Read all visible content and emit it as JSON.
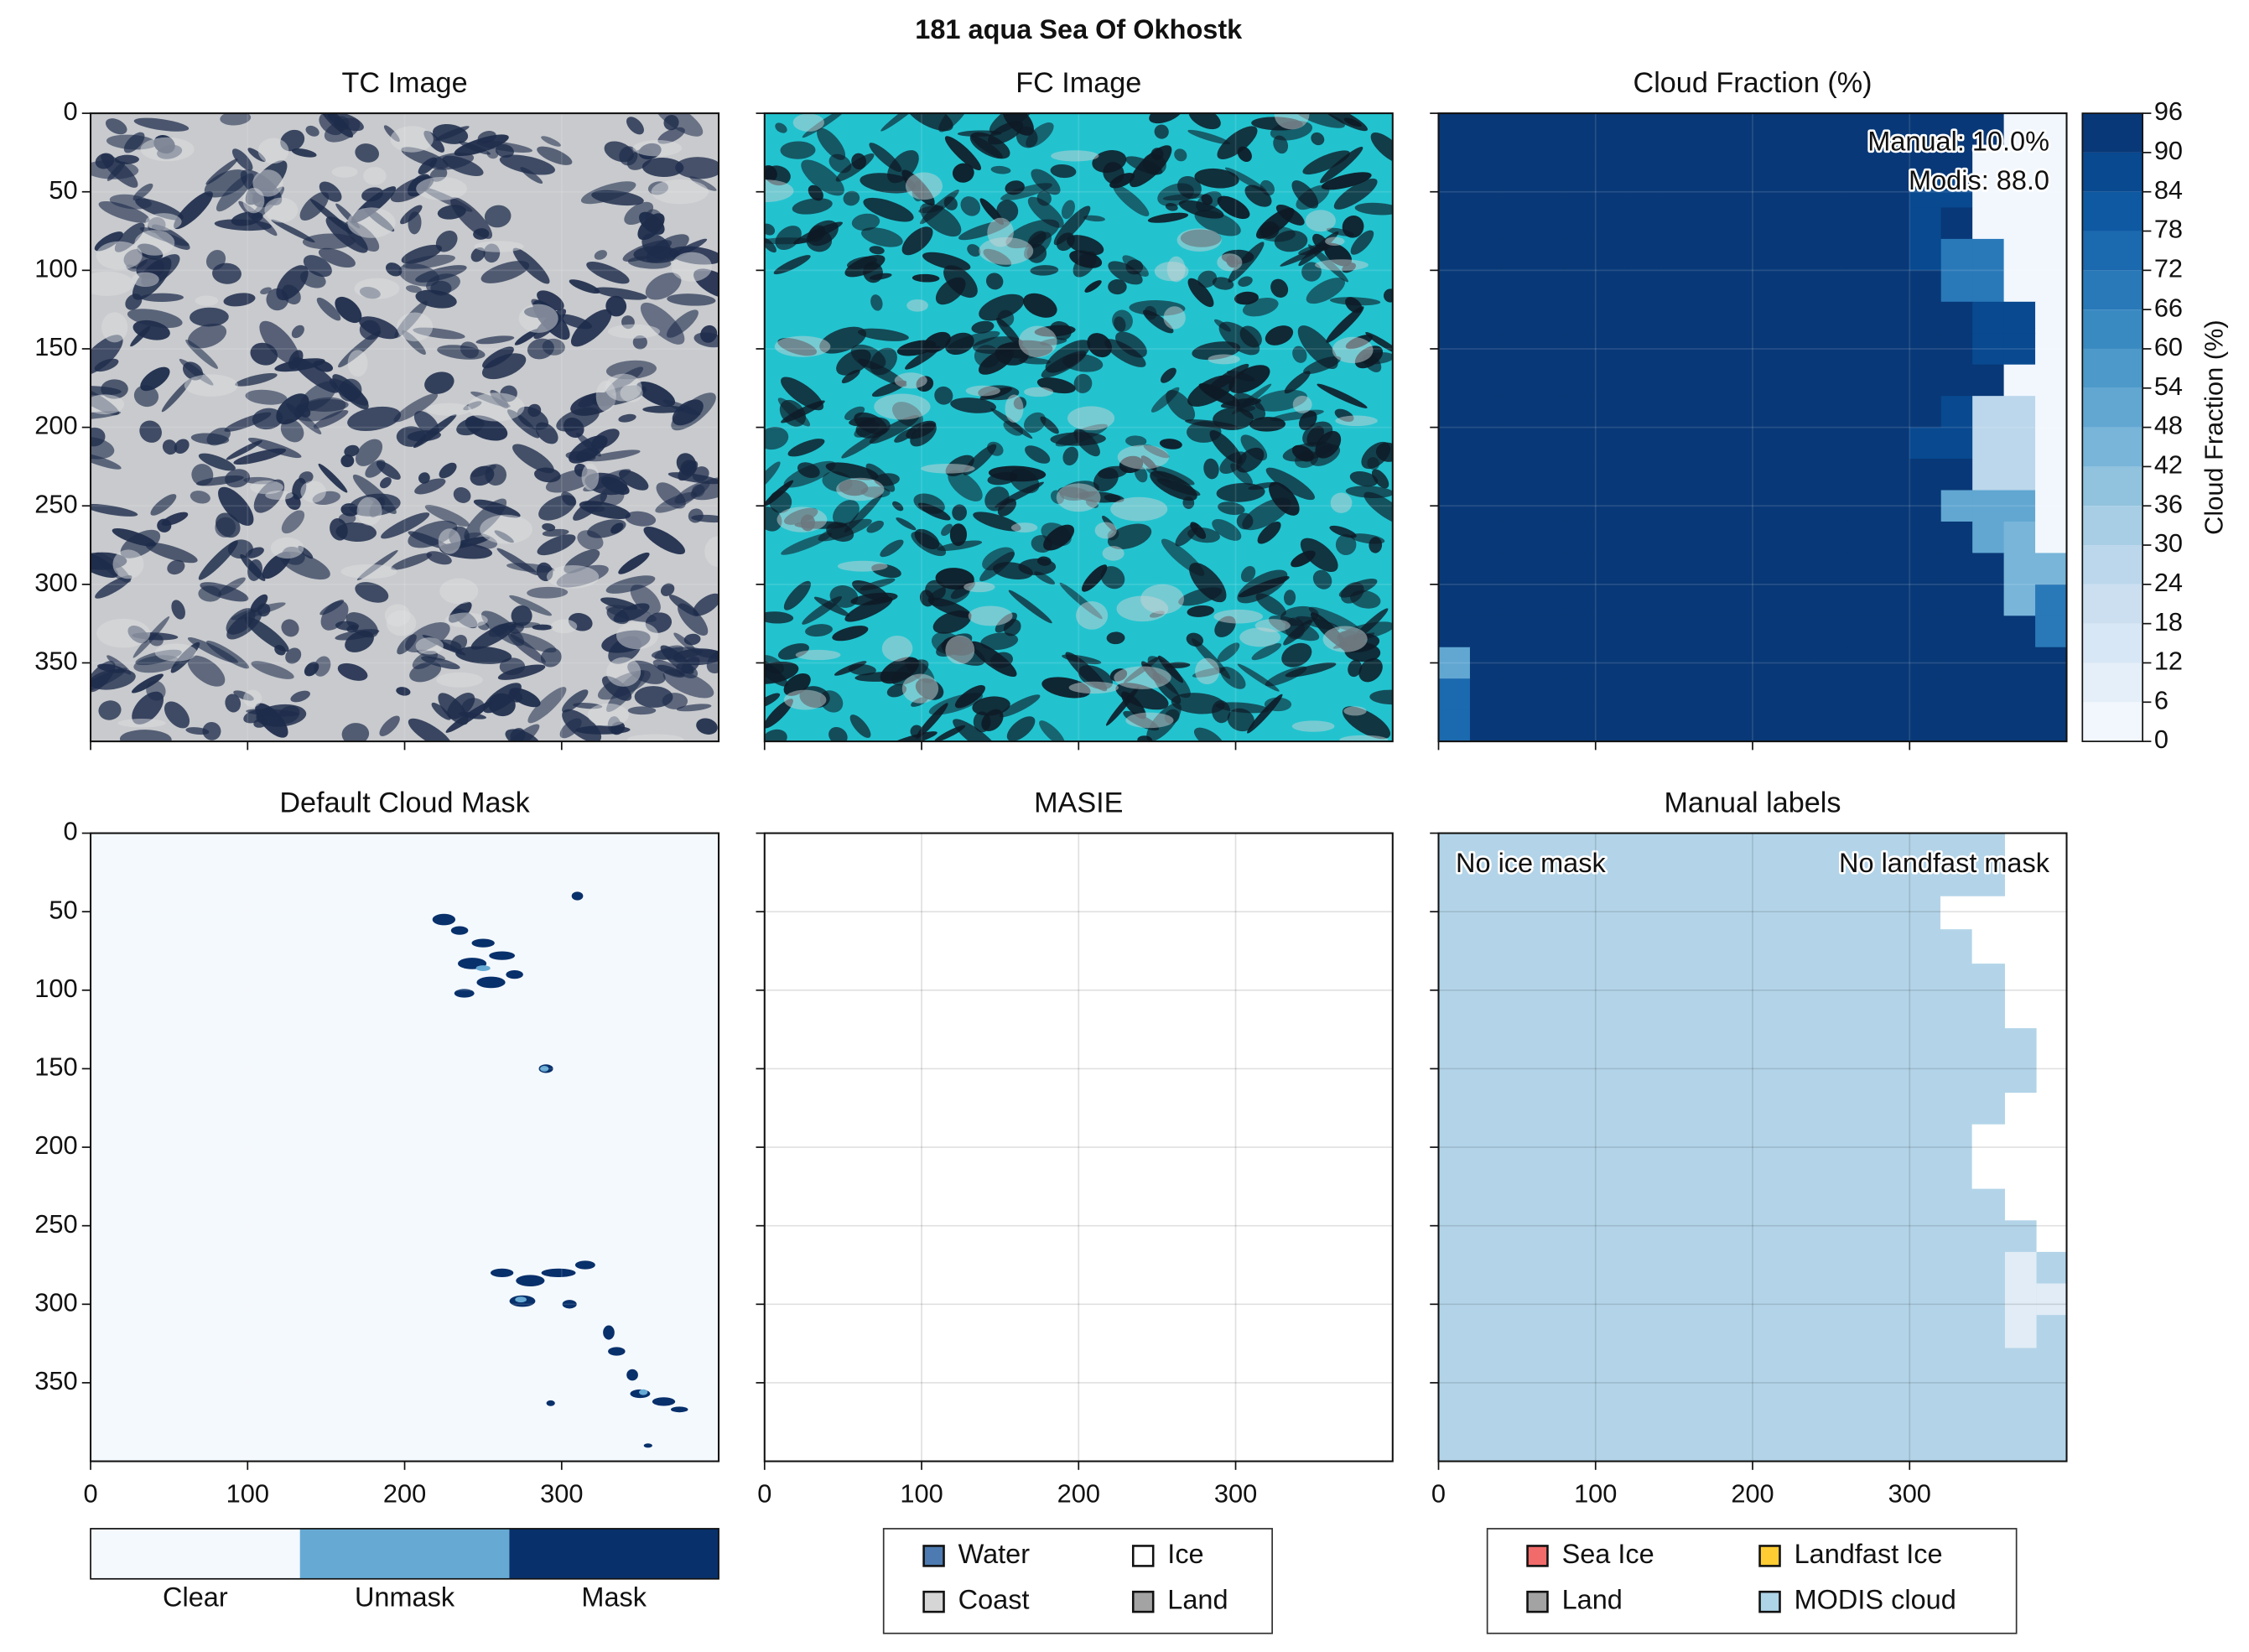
{
  "chart_data": {
    "type": "image-grid",
    "title": "181 aqua Sea Of Okhostk",
    "xlim": [
      0,
      400
    ],
    "ylim": [
      400,
      0
    ],
    "xticks": [
      0,
      100,
      200,
      300
    ],
    "yticks": [
      0,
      50,
      100,
      150,
      200,
      250,
      300,
      350
    ],
    "grid": true,
    "panels": [
      {
        "type": "image",
        "title": "TC Image",
        "style": "true-color"
      },
      {
        "type": "image",
        "title": "FC Image",
        "style": "false-color"
      },
      {
        "type": "heatmap",
        "title": "Cloud Fraction (%)",
        "annotations": [
          "Manual: 10.0%",
          "Modis: 88.0"
        ],
        "z": [
          [
            96,
            96,
            96,
            96,
            96,
            96,
            96,
            96,
            96,
            96,
            96,
            96,
            96,
            96,
            96,
            96,
            96,
            96,
            0,
            0
          ],
          [
            96,
            96,
            96,
            96,
            96,
            96,
            96,
            96,
            96,
            96,
            96,
            96,
            96,
            96,
            96,
            96,
            96,
            0,
            0,
            0
          ],
          [
            96,
            96,
            96,
            96,
            96,
            96,
            96,
            96,
            96,
            96,
            96,
            96,
            96,
            96,
            96,
            84,
            84,
            0,
            0,
            0
          ],
          [
            96,
            96,
            96,
            96,
            96,
            96,
            96,
            96,
            96,
            96,
            96,
            96,
            96,
            96,
            96,
            84,
            96,
            0,
            0,
            0
          ],
          [
            96,
            96,
            96,
            96,
            96,
            96,
            96,
            96,
            96,
            96,
            96,
            96,
            96,
            96,
            96,
            84,
            66,
            66,
            0,
            0
          ],
          [
            96,
            96,
            96,
            96,
            96,
            96,
            96,
            96,
            96,
            96,
            96,
            96,
            96,
            96,
            96,
            96,
            66,
            66,
            0,
            0
          ],
          [
            96,
            96,
            96,
            96,
            96,
            96,
            96,
            96,
            96,
            96,
            96,
            96,
            96,
            96,
            96,
            96,
            96,
            84,
            84,
            0
          ],
          [
            96,
            96,
            96,
            96,
            96,
            96,
            96,
            96,
            96,
            96,
            96,
            96,
            96,
            96,
            96,
            96,
            96,
            84,
            84,
            0
          ],
          [
            96,
            96,
            96,
            96,
            96,
            96,
            96,
            96,
            96,
            96,
            96,
            96,
            96,
            96,
            96,
            96,
            96,
            96,
            0,
            0
          ],
          [
            96,
            96,
            96,
            96,
            96,
            96,
            96,
            96,
            96,
            96,
            96,
            96,
            96,
            96,
            96,
            96,
            84,
            24,
            24,
            0
          ],
          [
            96,
            96,
            96,
            96,
            96,
            96,
            96,
            96,
            96,
            96,
            96,
            96,
            96,
            96,
            96,
            84,
            84,
            24,
            24,
            0
          ],
          [
            96,
            96,
            96,
            96,
            96,
            96,
            96,
            96,
            96,
            96,
            96,
            96,
            96,
            96,
            96,
            96,
            96,
            24,
            24,
            0
          ],
          [
            96,
            96,
            96,
            96,
            96,
            96,
            96,
            96,
            96,
            96,
            96,
            96,
            96,
            96,
            96,
            96,
            48,
            48,
            48,
            0
          ],
          [
            96,
            96,
            96,
            96,
            96,
            96,
            96,
            96,
            96,
            96,
            96,
            96,
            96,
            96,
            96,
            96,
            96,
            48,
            42,
            0
          ],
          [
            96,
            96,
            96,
            96,
            96,
            96,
            96,
            96,
            96,
            96,
            96,
            96,
            96,
            96,
            96,
            96,
            96,
            96,
            42,
            42
          ],
          [
            96,
            96,
            96,
            96,
            96,
            96,
            96,
            96,
            96,
            96,
            96,
            96,
            96,
            96,
            96,
            96,
            96,
            96,
            42,
            66
          ],
          [
            96,
            96,
            96,
            96,
            96,
            96,
            96,
            96,
            96,
            96,
            96,
            96,
            96,
            96,
            96,
            96,
            96,
            96,
            96,
            66
          ],
          [
            48,
            96,
            96,
            96,
            96,
            96,
            96,
            96,
            96,
            96,
            96,
            96,
            96,
            96,
            96,
            96,
            96,
            96,
            96,
            96
          ],
          [
            72,
            96,
            96,
            96,
            96,
            96,
            96,
            96,
            96,
            96,
            96,
            96,
            96,
            96,
            96,
            96,
            96,
            96,
            96,
            96
          ],
          [
            72,
            96,
            96,
            96,
            96,
            96,
            96,
            96,
            96,
            96,
            96,
            96,
            96,
            96,
            96,
            96,
            96,
            96,
            96,
            96
          ]
        ],
        "colorbar": {
          "label": "Cloud Fraction (%)",
          "cmap": "Blues",
          "ticks": [
            0,
            6,
            12,
            18,
            24,
            30,
            36,
            42,
            48,
            54,
            60,
            66,
            72,
            78,
            84,
            90,
            96
          ]
        }
      },
      {
        "type": "mask",
        "title": "Default Cloud Mask",
        "legend": {
          "categories": [
            "Clear",
            "Unmask",
            "Mask"
          ],
          "colors": [
            "#f4f9fe",
            "#66aad4",
            "#08306b"
          ]
        }
      },
      {
        "type": "categorical",
        "title": "MASIE",
        "fill": "#ffffff",
        "legend": [
          {
            "name": "Water",
            "color": "#4d7ab0"
          },
          {
            "name": "Coast",
            "color": "#d6d6d6"
          },
          {
            "name": "Ice",
            "color": "#ffffff"
          },
          {
            "name": "Land",
            "color": "#a3a3a3"
          }
        ]
      },
      {
        "type": "categorical",
        "title": "Manual labels",
        "fill": "#b3d4e8",
        "annotations": [
          "No ice mask",
          "No landfast mask"
        ],
        "legend": [
          {
            "name": "Sea Ice",
            "color": "#f26b6b"
          },
          {
            "name": "Land",
            "color": "#a3a3a3"
          },
          {
            "name": "Landfast Ice",
            "color": "#ffcc33"
          },
          {
            "name": "MODIS cloud",
            "color": "#aed4e8"
          }
        ]
      }
    ]
  }
}
